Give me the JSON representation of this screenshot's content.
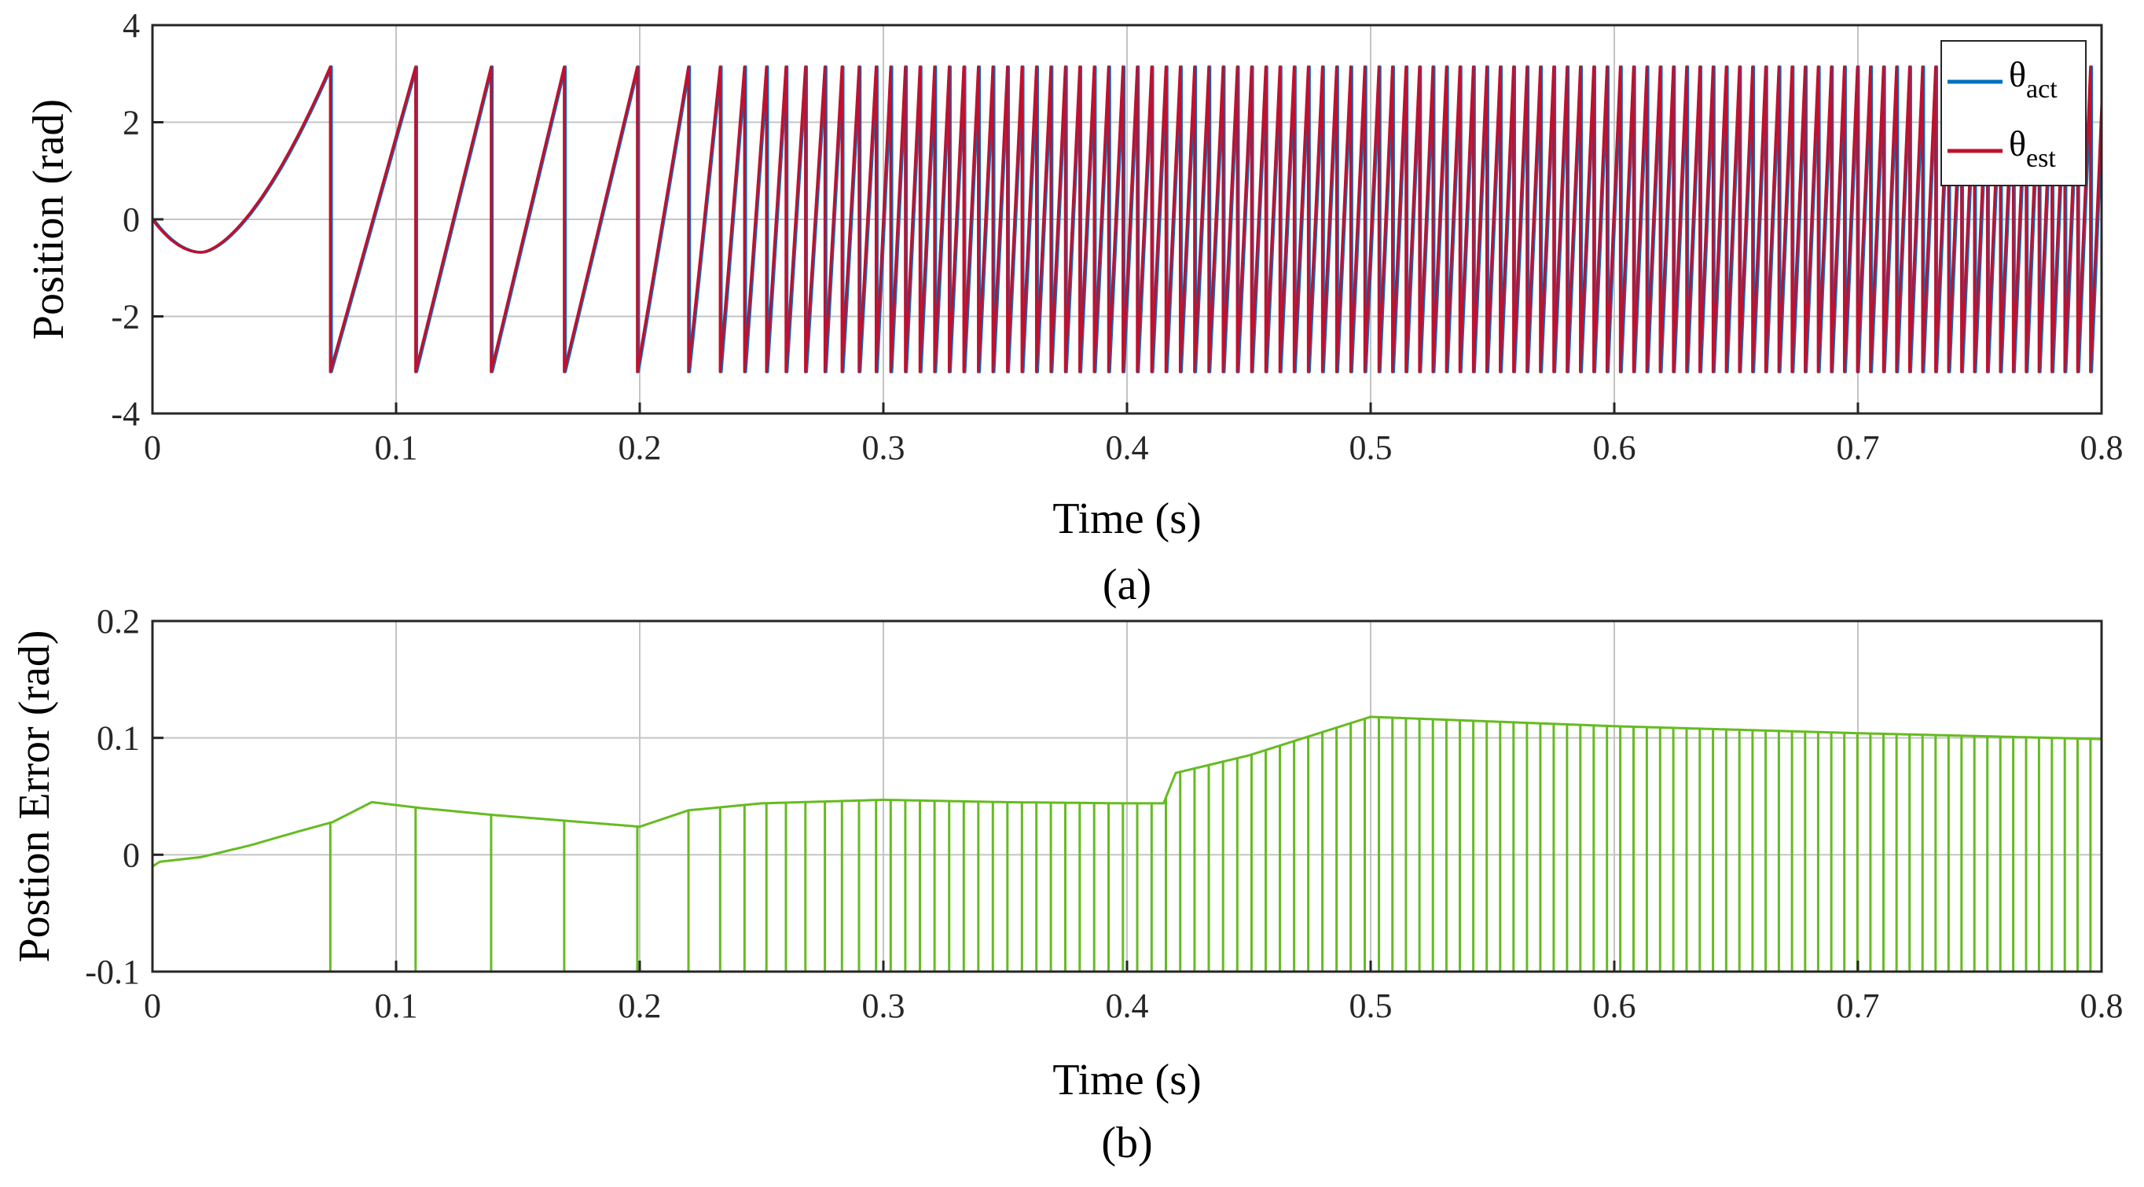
{
  "colors": {
    "theta_act": "#0072bd",
    "theta_est": "#c0102f",
    "error": "#66bb22",
    "axis": "#262626",
    "grid": "#c4c4c4"
  },
  "chart_data": [
    {
      "type": "line",
      "caption": "(a)",
      "xlabel": "Time (s)",
      "ylabel": "Position (rad)",
      "xlim": [
        0,
        0.8
      ],
      "ylim": [
        -4,
        4
      ],
      "xticks": [
        0,
        0.1,
        0.2,
        0.3,
        0.4,
        0.5,
        0.6,
        0.7,
        0.8
      ],
      "xtick_labels": [
        "0",
        "0.1",
        "0.2",
        "0.3",
        "0.4",
        "0.5",
        "0.6",
        "0.7",
        "0.8"
      ],
      "yticks": [
        -4,
        -2,
        0,
        2,
        4
      ],
      "ytick_labels": [
        "-4",
        "-2",
        "0",
        "2",
        "4"
      ],
      "grid": true,
      "legend_position": "top-right",
      "series": [
        {
          "name": "θact",
          "symbol": "θ",
          "subscript": "act",
          "color": "#0072bd"
        },
        {
          "name": "θest",
          "symbol": "θ",
          "subscript": "est",
          "color": "#c0102f"
        }
      ],
      "signal": {
        "description": "wrapped electrical angle (sawtooth between -π and π) of an accelerating rotor",
        "wrap_min": -3.14159,
        "wrap_max": 3.14159,
        "initial_dip_time": 0.02,
        "initial_dip_value": -0.68,
        "first_wrap_time": 0.073,
        "wrap_times": [
          0.073,
          0.108,
          0.139,
          0.169,
          0.199,
          0.22,
          0.233,
          0.243,
          0.252,
          0.26,
          0.268,
          0.276,
          0.283,
          0.29,
          0.297,
          0.303,
          0.309,
          0.315,
          0.321,
          0.327
        ],
        "freq_at_0_5s_hz": 180,
        "freq_at_0_8s_hz": 190
      }
    },
    {
      "type": "line",
      "caption": "(b)",
      "xlabel": "Time (s)",
      "ylabel": "Postion Error (rad)",
      "xlim": [
        0,
        0.8
      ],
      "ylim": [
        -0.1,
        0.2
      ],
      "xticks": [
        0,
        0.1,
        0.2,
        0.3,
        0.4,
        0.5,
        0.6,
        0.7,
        0.8
      ],
      "xtick_labels": [
        "0",
        "0.1",
        "0.2",
        "0.3",
        "0.4",
        "0.5",
        "0.6",
        "0.7",
        "0.8"
      ],
      "yticks": [
        -0.1,
        0,
        0.1,
        0.2
      ],
      "ytick_labels": [
        "-0.1",
        "0",
        "0.1",
        "0.2"
      ],
      "grid": true,
      "series": [
        {
          "name": "position error",
          "color": "#66bb22"
        }
      ],
      "envelope": {
        "t": [
          0,
          0.003,
          0.02,
          0.04,
          0.06,
          0.074,
          0.09,
          0.11,
          0.14,
          0.17,
          0.2,
          0.22,
          0.25,
          0.3,
          0.35,
          0.4,
          0.415,
          0.42,
          0.45,
          0.5,
          0.6,
          0.7,
          0.8
        ],
        "v": [
          -0.01,
          -0.006,
          -0.002,
          0.008,
          0.02,
          0.028,
          0.045,
          0.04,
          0.034,
          0.029,
          0.024,
          0.038,
          0.044,
          0.047,
          0.045,
          0.044,
          0.044,
          0.07,
          0.085,
          0.118,
          0.11,
          0.104,
          0.099
        ]
      },
      "spike_floor": -0.1
    }
  ]
}
